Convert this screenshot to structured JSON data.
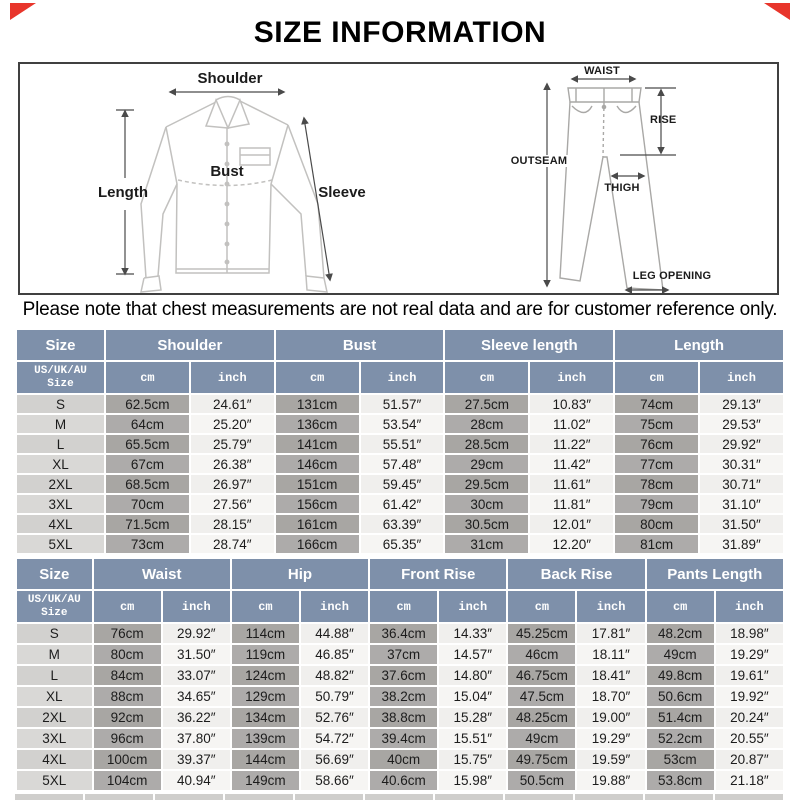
{
  "title": "SIZE INFORMATION",
  "note": "Please note that chest measurements are not real data and are for customer reference only.",
  "diagrams": {
    "shirt": {
      "shoulder": "Shoulder",
      "length": "Length",
      "bust": "Bust",
      "sleeve": "Sleeve"
    },
    "pants": {
      "waist": "WAIST",
      "rise": "RISE",
      "outseam": "OUTSEAM",
      "thigh": "THIGH",
      "leg_opening": "LEG OPENING"
    }
  },
  "table_shirt": {
    "size_header": "Size",
    "size_subheader": "US/UK/AU\nSize",
    "unit_cm": "cm",
    "unit_inch": "inch",
    "groups": [
      "Shoulder",
      "Bust",
      "Sleeve length",
      "Length"
    ],
    "rows": [
      {
        "size": "S",
        "values": [
          "62.5cm",
          "24.61″",
          "131cm",
          "51.57″",
          "27.5cm",
          "10.83″",
          "74cm",
          "29.13″"
        ]
      },
      {
        "size": "M",
        "values": [
          "64cm",
          "25.20″",
          "136cm",
          "53.54″",
          "28cm",
          "11.02″",
          "75cm",
          "29.53″"
        ]
      },
      {
        "size": "L",
        "values": [
          "65.5cm",
          "25.79″",
          "141cm",
          "55.51″",
          "28.5cm",
          "11.22″",
          "76cm",
          "29.92″"
        ]
      },
      {
        "size": "XL",
        "values": [
          "67cm",
          "26.38″",
          "146cm",
          "57.48″",
          "29cm",
          "11.42″",
          "77cm",
          "30.31″"
        ]
      },
      {
        "size": "2XL",
        "values": [
          "68.5cm",
          "26.97″",
          "151cm",
          "59.45″",
          "29.5cm",
          "11.61″",
          "78cm",
          "30.71″"
        ]
      },
      {
        "size": "3XL",
        "values": [
          "70cm",
          "27.56″",
          "156cm",
          "61.42″",
          "30cm",
          "11.81″",
          "79cm",
          "31.10″"
        ]
      },
      {
        "size": "4XL",
        "values": [
          "71.5cm",
          "28.15″",
          "161cm",
          "63.39″",
          "30.5cm",
          "12.01″",
          "80cm",
          "31.50″"
        ]
      },
      {
        "size": "5XL",
        "values": [
          "73cm",
          "28.74″",
          "166cm",
          "65.35″",
          "31cm",
          "12.20″",
          "81cm",
          "31.89″"
        ]
      }
    ]
  },
  "table_pants": {
    "size_header": "Size",
    "size_subheader": "US/UK/AU\nSize",
    "unit_cm": "cm",
    "unit_inch": "inch",
    "groups": [
      "Waist",
      "Hip",
      "Front Rise",
      "Back Rise",
      "Pants Length"
    ],
    "rows": [
      {
        "size": "S",
        "values": [
          "76cm",
          "29.92″",
          "114cm",
          "44.88″",
          "36.4cm",
          "14.33″",
          "45.25cm",
          "17.81″",
          "48.2cm",
          "18.98″"
        ]
      },
      {
        "size": "M",
        "values": [
          "80cm",
          "31.50″",
          "119cm",
          "46.85″",
          "37cm",
          "14.57″",
          "46cm",
          "18.11″",
          "49cm",
          "19.29″"
        ]
      },
      {
        "size": "L",
        "values": [
          "84cm",
          "33.07″",
          "124cm",
          "48.82″",
          "37.6cm",
          "14.80″",
          "46.75cm",
          "18.41″",
          "49.8cm",
          "19.61″"
        ]
      },
      {
        "size": "XL",
        "values": [
          "88cm",
          "34.65″",
          "129cm",
          "50.79″",
          "38.2cm",
          "15.04″",
          "47.5cm",
          "18.70″",
          "50.6cm",
          "19.92″"
        ]
      },
      {
        "size": "2XL",
        "values": [
          "92cm",
          "36.22″",
          "134cm",
          "52.76″",
          "38.8cm",
          "15.28″",
          "48.25cm",
          "19.00″",
          "51.4cm",
          "20.24″"
        ]
      },
      {
        "size": "3XL",
        "values": [
          "96cm",
          "37.80″",
          "139cm",
          "54.72″",
          "39.4cm",
          "15.51″",
          "49cm",
          "19.29″",
          "52.2cm",
          "20.55″"
        ]
      },
      {
        "size": "4XL",
        "values": [
          "100cm",
          "39.37″",
          "144cm",
          "56.69″",
          "40cm",
          "15.75″",
          "49.75cm",
          "19.59″",
          "53cm",
          "20.87″"
        ]
      },
      {
        "size": "5XL",
        "values": [
          "104cm",
          "40.94″",
          "149cm",
          "58.66″",
          "40.6cm",
          "15.98″",
          "50.5cm",
          "19.88″",
          "53.8cm",
          "21.18″"
        ]
      }
    ]
  },
  "colors": {
    "header_bg": "#7e90aa",
    "size_cell_bg": "#d2d1cf",
    "cm_cell_bg": "#a8a6a3",
    "inch_cell_bg": "#f0efed",
    "corner_red": "#e8352b"
  }
}
